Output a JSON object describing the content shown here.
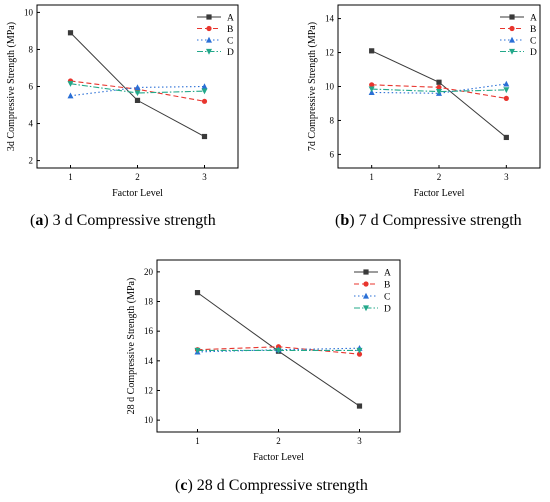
{
  "colors": {
    "A": "#3a3a3a",
    "B": "#e8352e",
    "C": "#2a6fd6",
    "D": "#23a88a"
  },
  "chart_data": [
    {
      "type": "line",
      "id": "a",
      "caption_letter": "a",
      "caption_text": "3 d Compressive strength",
      "xlabel": "Factor Level",
      "ylabel": "3d Compressive Strength (MPa)",
      "x": [
        1,
        2,
        3
      ],
      "xticks": [
        "1",
        "2",
        "3"
      ],
      "ylim": [
        1.6,
        10.4
      ],
      "yticks": [
        2,
        4,
        6,
        8,
        10
      ],
      "legend": "top-right",
      "series": [
        {
          "name": "A",
          "marker": "square",
          "dash": "solid",
          "values": [
            8.9,
            5.25,
            3.3
          ]
        },
        {
          "name": "B",
          "marker": "circle",
          "dash": "dash",
          "values": [
            6.3,
            5.85,
            5.2
          ]
        },
        {
          "name": "C",
          "marker": "triangle-up",
          "dash": "dot",
          "values": [
            5.5,
            5.95,
            6.0
          ]
        },
        {
          "name": "D",
          "marker": "triangle-down",
          "dash": "dashdot",
          "values": [
            6.15,
            5.65,
            5.75
          ]
        }
      ]
    },
    {
      "type": "line",
      "id": "b",
      "caption_letter": "b",
      "caption_text": "7 d Compressive strength",
      "xlabel": "Factor Level",
      "ylabel": "7d Compressive Strength (MPa)",
      "x": [
        1,
        2,
        3
      ],
      "xticks": [
        "1",
        "2",
        "3"
      ],
      "ylim": [
        5.2,
        14.8
      ],
      "yticks": [
        6,
        8,
        10,
        12,
        14
      ],
      "legend": "top-right",
      "series": [
        {
          "name": "A",
          "marker": "square",
          "dash": "solid",
          "values": [
            12.1,
            10.25,
            7.0
          ]
        },
        {
          "name": "B",
          "marker": "circle",
          "dash": "dash",
          "values": [
            10.1,
            9.95,
            9.3
          ]
        },
        {
          "name": "C",
          "marker": "triangle-up",
          "dash": "dot",
          "values": [
            9.65,
            9.6,
            10.15
          ]
        },
        {
          "name": "D",
          "marker": "triangle-down",
          "dash": "dashdot",
          "values": [
            9.85,
            9.7,
            9.8
          ]
        }
      ]
    },
    {
      "type": "line",
      "id": "c",
      "caption_letter": "c",
      "caption_text": "28 d Compressive strength",
      "xlabel": "Factor Level",
      "ylabel": "28 d Compressive Strength (MPa)",
      "x": [
        1,
        2,
        3
      ],
      "xticks": [
        "1",
        "2",
        "3"
      ],
      "ylim": [
        9.2,
        20.8
      ],
      "yticks": [
        10,
        12,
        14,
        16,
        18,
        20
      ],
      "legend": "top-right",
      "series": [
        {
          "name": "A",
          "marker": "square",
          "dash": "solid",
          "values": [
            18.6,
            14.65,
            10.95
          ]
        },
        {
          "name": "B",
          "marker": "circle",
          "dash": "dash",
          "values": [
            14.75,
            14.95,
            14.45
          ]
        },
        {
          "name": "C",
          "marker": "triangle-up",
          "dash": "dot",
          "values": [
            14.6,
            14.75,
            14.85
          ]
        },
        {
          "name": "D",
          "marker": "triangle-down",
          "dash": "dashdot",
          "values": [
            14.7,
            14.7,
            14.7
          ]
        }
      ]
    }
  ]
}
